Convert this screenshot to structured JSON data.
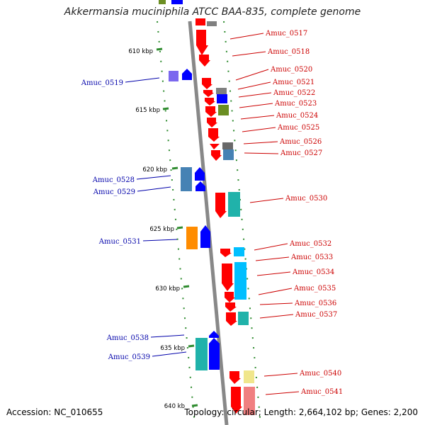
{
  "title": "Akkermansia muciniphila ATCC BAA-835, complete genome",
  "footer": {
    "accession": "Accession: NC_010655",
    "summary": "Topology: circular; Length: 2,664,102 bp; Genes: 2,200"
  },
  "colors": {
    "axis": "#888888",
    "tick": "#2e8b2e",
    "right_labels": "#cc0000",
    "left_labels": "#0000aa"
  },
  "ticks": [
    {
      "label": "610 kbp",
      "kbp": 610
    },
    {
      "label": "615 kbp",
      "kbp": 615
    },
    {
      "label": "620 kbp",
      "kbp": 620
    },
    {
      "label": "625 kbp",
      "kbp": 625
    },
    {
      "label": "630 kbp",
      "kbp": 630
    },
    {
      "label": "635 kbp",
      "kbp": 635
    },
    {
      "label": "640 kb",
      "kbp": 640
    }
  ],
  "labels_right": [
    "Amuc_0517",
    "Amuc_0518",
    "Amuc_0520",
    "Amuc_0521",
    "Amuc_0522",
    "Amuc_0523",
    "Amuc_0524",
    "Amuc_0525",
    "Amuc_0526",
    "Amuc_0527",
    "Amuc_0530",
    "Amuc_0532",
    "Amuc_0533",
    "Amuc_0534",
    "Amuc_0535",
    "Amuc_0536",
    "Amuc_0537",
    "Amuc_0540",
    "Amuc_0541"
  ],
  "labels_left": [
    "Amuc_0519",
    "Amuc_0528",
    "Amuc_0529",
    "Amuc_0531",
    "Amuc_0538",
    "Amuc_0539"
  ]
}
